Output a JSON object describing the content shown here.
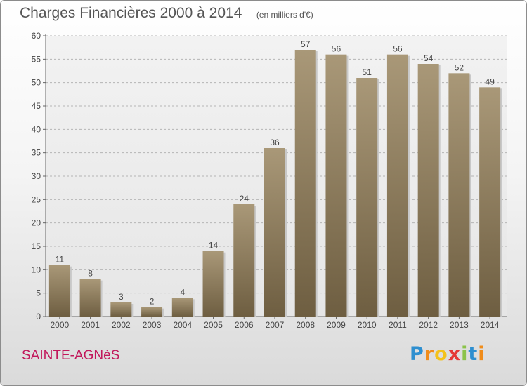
{
  "header": {
    "title": "Charges Financières 2000 à 2014",
    "subtitle": "(en milliers d'€)"
  },
  "commune": "SAINTE-AGNèS",
  "logo": {
    "letters": [
      "P",
      "r",
      "o",
      "x",
      "i",
      "t",
      "i"
    ],
    "colors": [
      "#2e8fd0",
      "#f08c1a",
      "#f4c21a",
      "#e53935",
      "#8bc34a",
      "#2e8fd0",
      "#f08c1a"
    ]
  },
  "chart_data": {
    "type": "bar",
    "categories": [
      "2000",
      "2001",
      "2002",
      "2003",
      "2004",
      "2005",
      "2006",
      "2007",
      "2008",
      "2009",
      "2010",
      "2011",
      "2012",
      "2013",
      "2014"
    ],
    "values": [
      11,
      8,
      3,
      2,
      4,
      14,
      24,
      36,
      57,
      56,
      51,
      56,
      54,
      52,
      49
    ],
    "ylim": [
      0,
      60
    ],
    "yticks": [
      0,
      5,
      10,
      15,
      20,
      25,
      30,
      35,
      40,
      45,
      50,
      55,
      60
    ],
    "grid": "horizontal-dashed",
    "bar_color": "#9c8c6c"
  }
}
